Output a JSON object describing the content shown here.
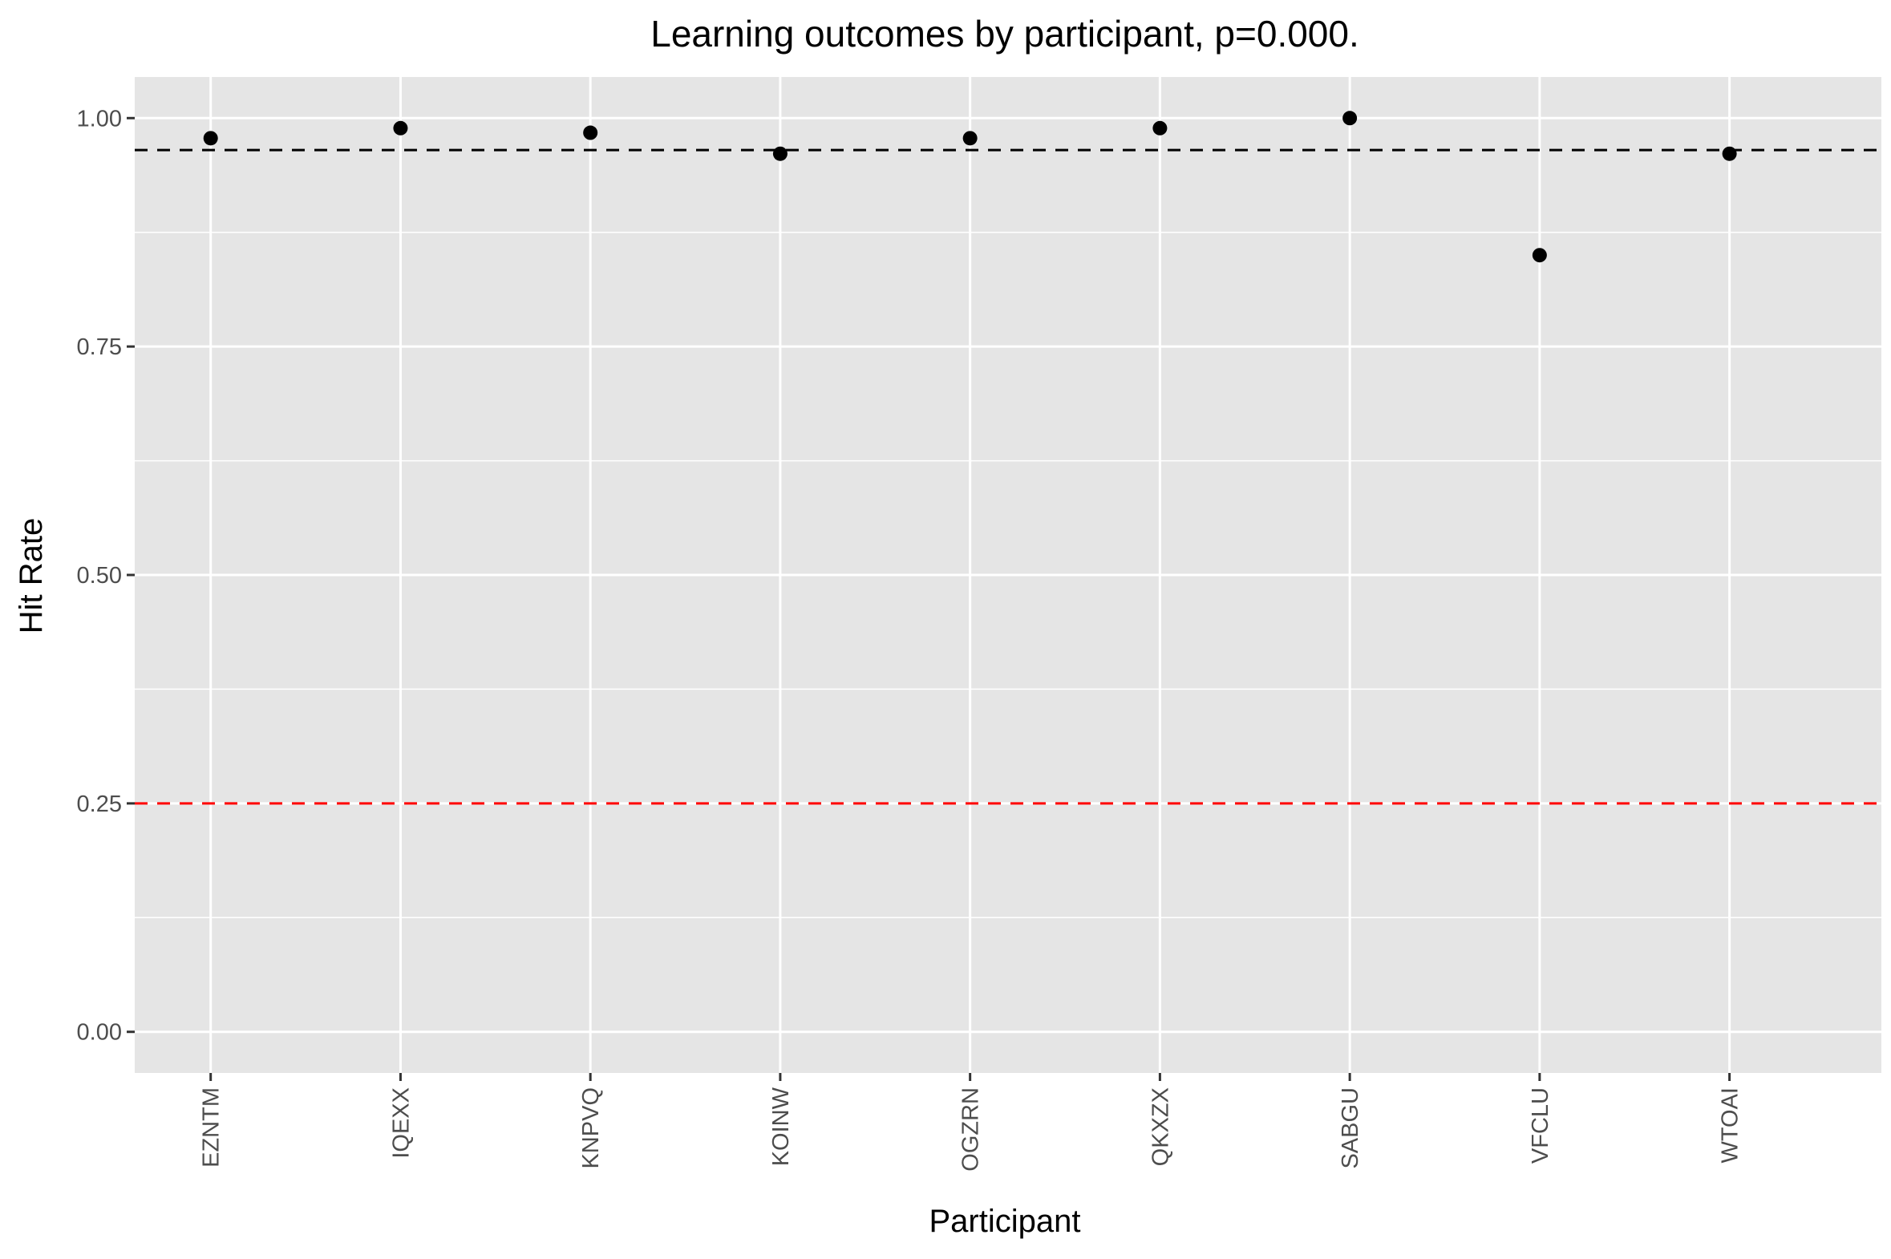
{
  "chart_data": {
    "type": "scatter",
    "title": "Learning outcomes by participant, p=0.000.",
    "xlabel": "Participant",
    "ylabel": "Hit Rate",
    "categories": [
      "EZNTM",
      "IQEXX",
      "KNPVQ",
      "KOINW",
      "OGZRN",
      "QKXZX",
      "SABGU",
      "VFCLU",
      "WTOAI"
    ],
    "values": [
      0.978,
      0.989,
      0.984,
      0.961,
      0.978,
      0.989,
      1.0,
      0.85,
      0.961
    ],
    "ylim": [
      -0.045,
      1.045
    ],
    "yticks": [
      0.0,
      0.25,
      0.5,
      0.75,
      1.0
    ],
    "ytick_labels": [
      "0.00",
      "0.25",
      "0.50",
      "0.75",
      "1.00"
    ],
    "reference_lines": [
      {
        "value": 0.965,
        "color": "#000000",
        "style": "dashed"
      },
      {
        "value": 0.25,
        "color": "#ff0000",
        "style": "dashed"
      }
    ],
    "grid": true,
    "legend": "none",
    "colors": {
      "panel_background": "#e5e5e5",
      "grid_line": "#ffffff",
      "point": "#000000",
      "tick_mark": "#333333",
      "tick_label": "#4d4d4d"
    }
  }
}
